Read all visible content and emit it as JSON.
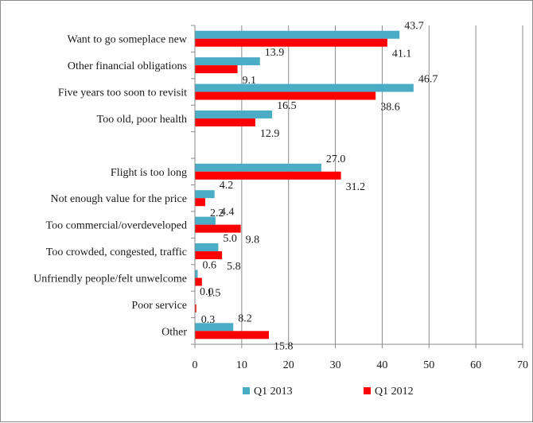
{
  "chart_data": {
    "type": "bar",
    "orientation": "horizontal",
    "categories": [
      "Want to go someplace new",
      "Other financial obligations",
      "Five years too soon to revisit",
      "Too old, poor health",
      "",
      "Flight is too long",
      "Not enough value for the price",
      "Too commercial/overdeveloped",
      "Too crowded, congested, traffic",
      "Unfriendly people/felt unwelcome",
      "Poor service",
      "Other"
    ],
    "series": [
      {
        "name": "Q1 2013",
        "color": "#4bacc6",
        "values": [
          43.7,
          13.9,
          46.7,
          16.5,
          null,
          27.0,
          4.2,
          4.4,
          5.0,
          0.6,
          0.0,
          8.2
        ],
        "labels": [
          "43.7",
          "13.9",
          "46.7",
          "16.5",
          "",
          "27.0",
          "4.2",
          "4.4",
          "5.0",
          "0.6",
          "0.0",
          "8.2"
        ]
      },
      {
        "name": "Q1 2012",
        "color": "#ff0000",
        "values": [
          41.1,
          9.1,
          38.6,
          12.9,
          null,
          31.2,
          2.2,
          9.8,
          5.8,
          1.5,
          0.3,
          15.8
        ],
        "labels": [
          "41.1",
          "9.1",
          "38.6",
          "12.9",
          "",
          "31.2",
          "2.2",
          "9.8",
          "5.8",
          "1.5",
          "0.3",
          "15.8"
        ]
      }
    ],
    "xlim": [
      0,
      70
    ],
    "xticks": [
      "0",
      "10",
      "20",
      "30",
      "40",
      "50",
      "60",
      "70"
    ],
    "grid": "vertical",
    "legend": "bottom",
    "title": "",
    "xlabel": "",
    "ylabel": ""
  }
}
